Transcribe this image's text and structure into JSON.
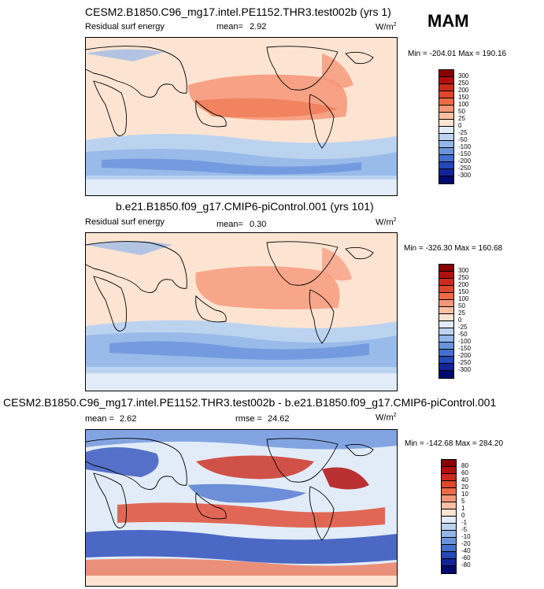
{
  "season": "MAM",
  "panels": [
    {
      "title": "CESM2.B1850.C96_mg17.intel.PE1152.THR3.test002b (yrs 1)",
      "variable": "Residual surf energy",
      "stat_label": "mean=",
      "stat_value": "2.92",
      "units": "W/m",
      "units_exp": "2",
      "minmax": "Min = -204.01 Max = 190.16",
      "colorbar_levels": [
        "300",
        "250",
        "200",
        "150",
        "100",
        "50",
        "25",
        "0",
        "-25",
        "-50",
        "-100",
        "-150",
        "-200",
        "-250",
        "-300"
      ],
      "colorbar_colors": [
        "#8b0000",
        "#b30f0f",
        "#cc2a1a",
        "#e0462c",
        "#ee6a44",
        "#f69677",
        "#fbc0a2",
        "#fde4d2",
        "#e2ecf8",
        "#bcd3f0",
        "#93b6e8",
        "#6a93dc",
        "#456fce",
        "#2647b8",
        "#12249a",
        "#000a6e"
      ]
    },
    {
      "title": "b.e21.B1850.f09_g17.CMIP6-piControl.001 (yrs 101)",
      "variable": "Residual surf energy",
      "stat_label": "mean=",
      "stat_value": "0.30",
      "units": "W/m",
      "units_exp": "2",
      "minmax": "Min = -326.30 Max = 160.68",
      "colorbar_levels": [
        "300",
        "250",
        "200",
        "150",
        "100",
        "50",
        "25",
        "0",
        "-25",
        "-50",
        "-100",
        "-150",
        "-200",
        "-250",
        "-300"
      ],
      "colorbar_colors": [
        "#8b0000",
        "#b30f0f",
        "#cc2a1a",
        "#e0462c",
        "#ee6a44",
        "#f69677",
        "#fbc0a2",
        "#fde4d2",
        "#e2ecf8",
        "#bcd3f0",
        "#93b6e8",
        "#6a93dc",
        "#456fce",
        "#2647b8",
        "#12249a",
        "#000a6e"
      ]
    },
    {
      "title": "CESM2.B1850.C96_mg17.intel.PE1152.THR3.test002b - b.e21.B1850.f09_g17.CMIP6-piControl.001",
      "stat_label": "mean =",
      "stat_value": "2.62",
      "rmse_label": "rmse =",
      "rmse_value": "24.62",
      "units": "W/m",
      "units_exp": "2",
      "minmax": "Min = -142.68 Max = 284.20",
      "colorbar_levels": [
        "80",
        "60",
        "40",
        "20",
        "10",
        "5",
        "1",
        "0",
        "-1",
        "-5",
        "-10",
        "-20",
        "-40",
        "-60",
        "-80"
      ],
      "colorbar_colors": [
        "#8b0000",
        "#b30f0f",
        "#cc2a1a",
        "#e0462c",
        "#ee6a44",
        "#f69677",
        "#fbc0a2",
        "#fde4d2",
        "#e2ecf8",
        "#bcd3f0",
        "#93b6e8",
        "#6a93dc",
        "#456fce",
        "#2647b8",
        "#12249a",
        "#000a6e"
      ]
    }
  ]
}
